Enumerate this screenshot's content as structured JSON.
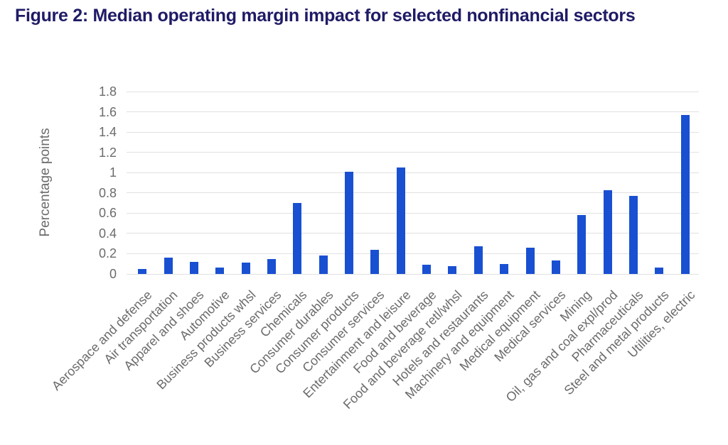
{
  "figure": {
    "title": "Figure 2: Median operating margin impact for selected nonfinancial sectors"
  },
  "colors": {
    "bar": "#1950d2",
    "title": "#1f1b66",
    "axis_text": "#6b6b6b",
    "gridline": "#e1e1e1"
  },
  "chart_data": {
    "type": "bar",
    "title": "Figure 2: Median operating margin impact for selected nonfinancial sectors",
    "xlabel": "",
    "ylabel": "Percentage points",
    "ylim": [
      0,
      1.8
    ],
    "ytick_step": 0.2,
    "grid": true,
    "legend": false,
    "categories": [
      "Aerospace and defense",
      "Air transportation",
      "Apparel and shoes",
      "Automotive",
      "Business products whsl",
      "Business services",
      "Chemicals",
      "Consumer durables",
      "Consumer products",
      "Consumer services",
      "Entertainment and leisure",
      "Food and beverage",
      "Food and beverage retl/whsl",
      "Hotels and restaurants",
      "Machinery and equipment",
      "Medical equipment",
      "Medical services",
      "Mining",
      "Oil, gas and coal expl/prod",
      "Pharmaceuticals",
      "Steel and metal products",
      "Utilities, electric"
    ],
    "values": [
      0.05,
      0.16,
      0.12,
      0.06,
      0.11,
      0.15,
      0.7,
      0.18,
      1.01,
      0.24,
      1.05,
      0.09,
      0.08,
      0.27,
      0.1,
      0.26,
      0.13,
      0.58,
      0.83,
      0.77,
      0.06,
      1.57
    ]
  }
}
